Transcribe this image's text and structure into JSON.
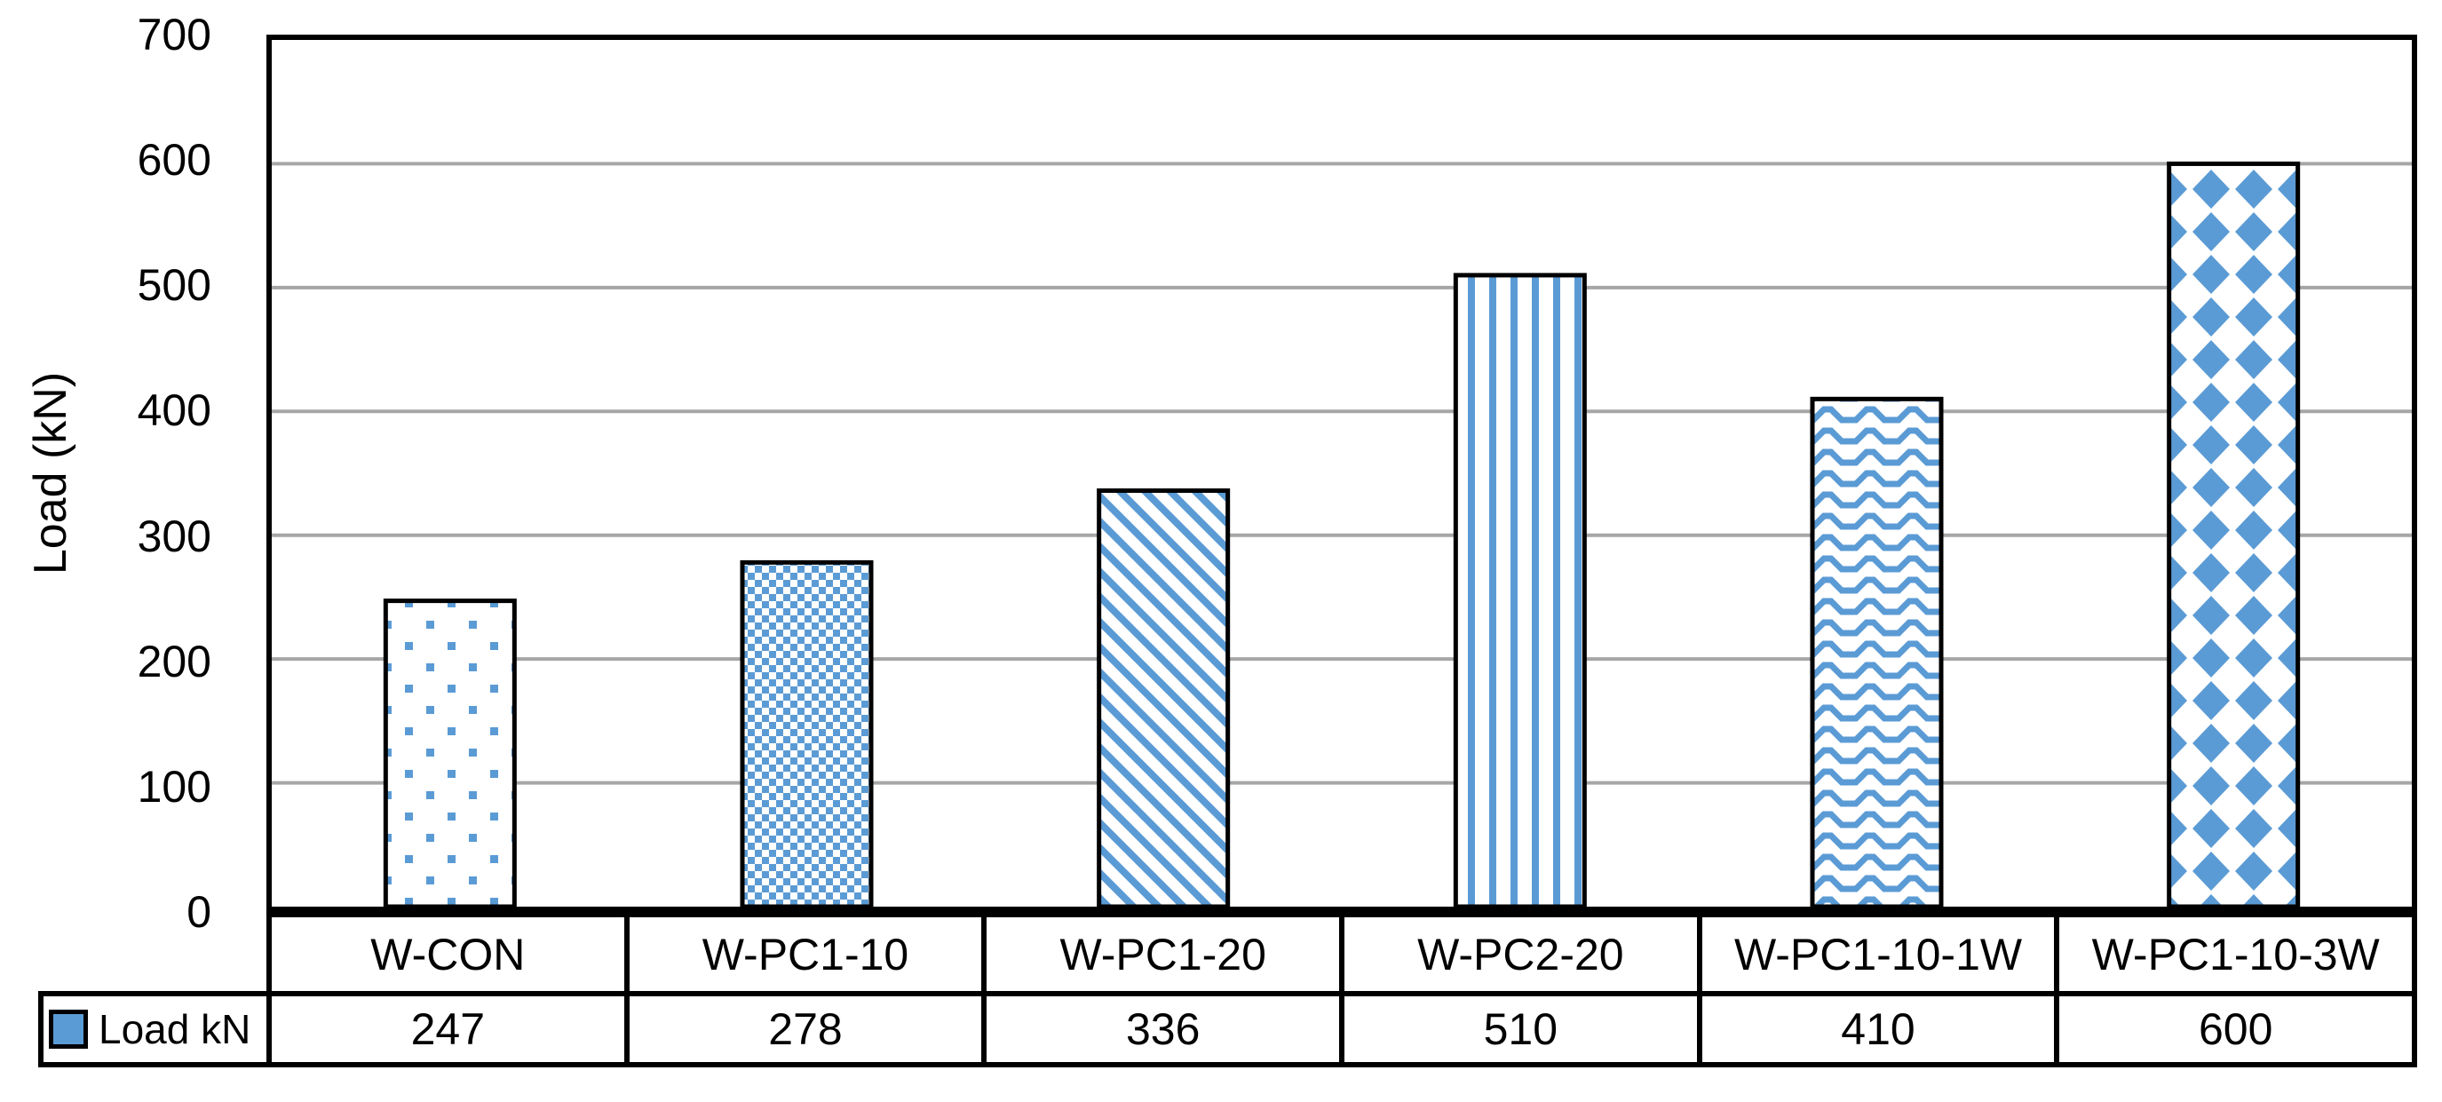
{
  "chart_data": {
    "type": "bar",
    "title": "",
    "xlabel": "",
    "ylabel": "Load (kN)",
    "categories": [
      "W-CON",
      "W-PC1-10",
      "W-PC1-20",
      "W-PC2-20",
      "W-PC1-10-1W",
      "W-PC1-10-3W"
    ],
    "series": [
      {
        "name": "Load kN",
        "values": [
          247,
          278,
          336,
          510,
          410,
          600
        ]
      }
    ],
    "ylim": [
      0,
      700
    ],
    "ytick_step": 100,
    "yticks": [
      "0",
      "100",
      "200",
      "300",
      "400",
      "500",
      "600",
      "700"
    ],
    "grid": true,
    "legend_position": "bottom-table-left",
    "bar_patterns": [
      "dots",
      "checker",
      "diagonal-stripes",
      "vertical-stripes",
      "zigzag",
      "diamonds"
    ],
    "colors": {
      "bar_blue": "#5B9BD5",
      "grid_gray": "#A6A6A6",
      "axis_black": "#000000",
      "background": "#FFFFFF"
    }
  }
}
